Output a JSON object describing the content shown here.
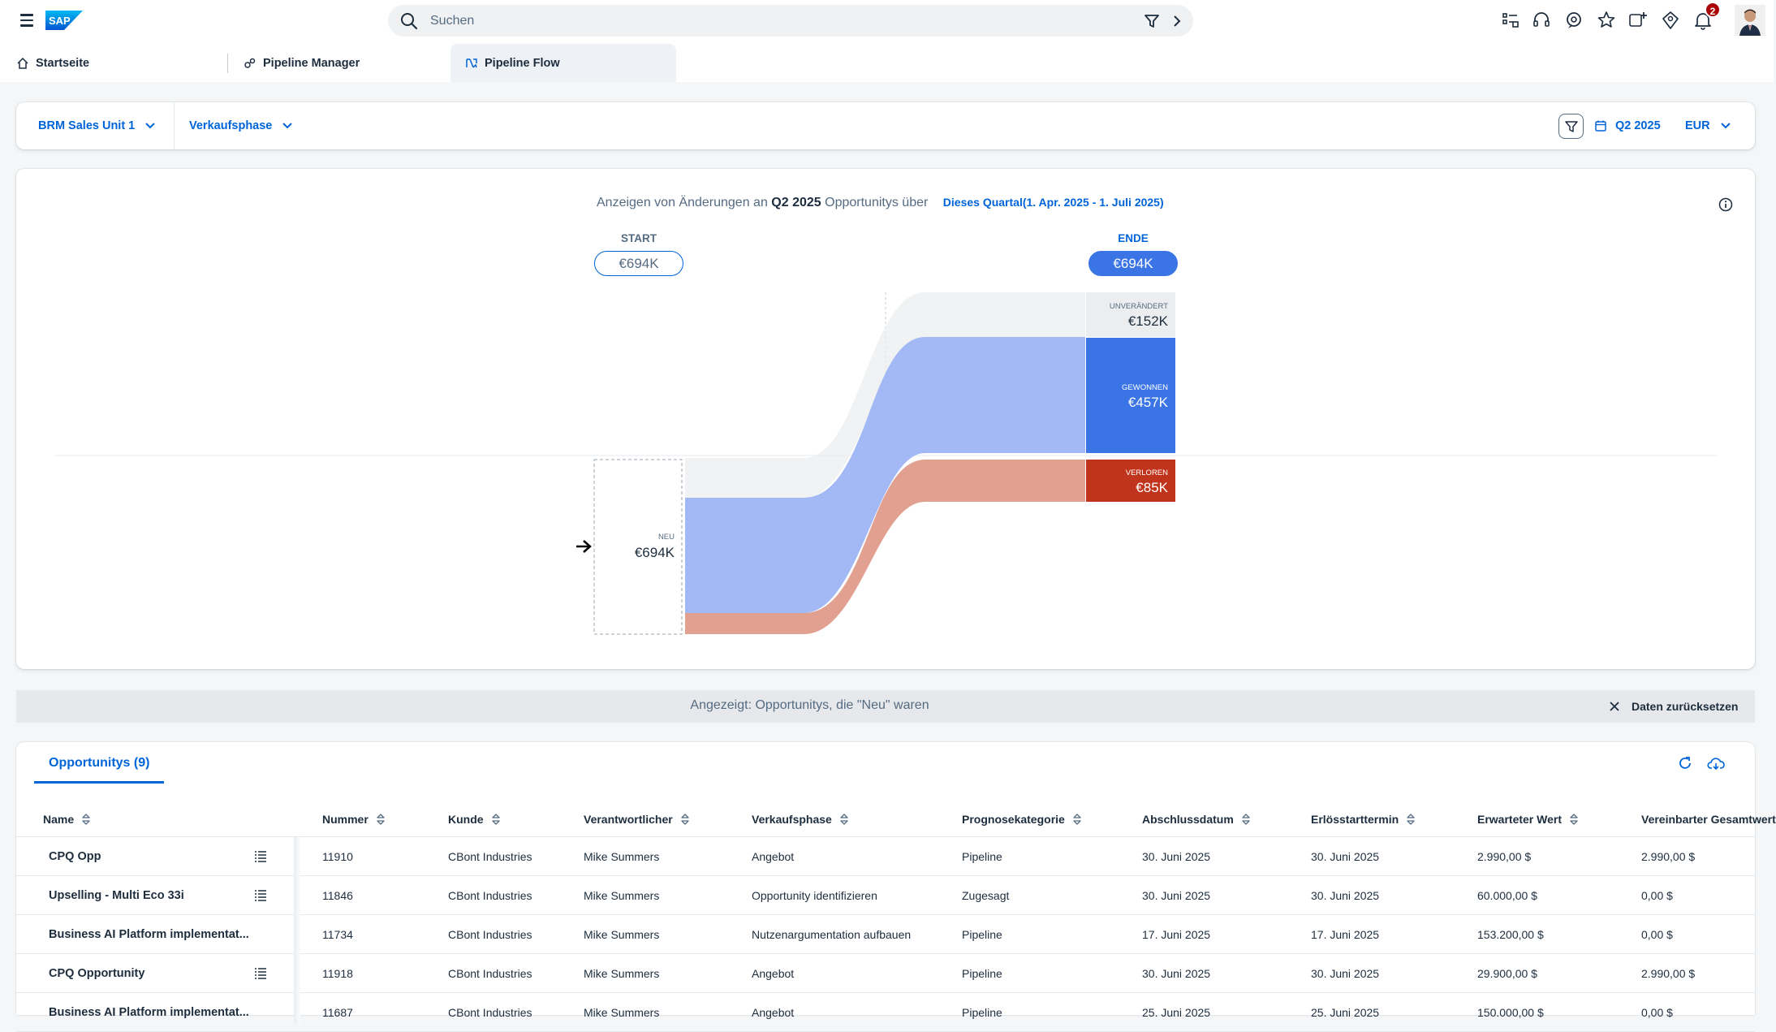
{
  "shell": {
    "logo_text": "SAP",
    "search_placeholder": "Suchen",
    "notification_count": "2"
  },
  "tabs": [
    {
      "label": "Startseite",
      "icon": "home-icon"
    },
    {
      "label": "Pipeline Manager",
      "icon": "pipeline-manager-icon"
    },
    {
      "label": "Pipeline Flow",
      "icon": "pipeline-flow-icon",
      "active": true
    }
  ],
  "filters": {
    "sales_unit": "BRM Sales Unit 1",
    "phase": "Verkaufsphase",
    "quarter": "Q2 2025",
    "currency": "EUR"
  },
  "chart": {
    "subtitle_prefix": "Anzeigen von Änderungen an",
    "subtitle_quarter": "Q2 2025",
    "subtitle_suffix": "Opportunitys über",
    "period_link": "Dieses Quartal(1. Apr. 2025 - 1. Juli 2025)",
    "start_label": "START",
    "start_value": "€694K",
    "end_label": "ENDE",
    "end_value": "€694K",
    "new_label": "NEU",
    "new_value": "€694K",
    "unchanged_label": "UNVERÄNDERT",
    "unchanged_value": "€152K",
    "won_label": "GEWONNEN",
    "won_value": "€457K",
    "lost_label": "VERLOREN",
    "lost_value": "€85K",
    "colors": {
      "unchanged": "#ebedef",
      "won": "#3b74e5",
      "won_flow": "#a2b9f5",
      "lost": "#c0341d",
      "lost_flow": "#e2a091"
    }
  },
  "chart_data": {
    "type": "sankey",
    "start": 694,
    "end": 694,
    "unit": "€K",
    "nodes": [
      "NEU",
      "UNVERÄNDERT",
      "GEWONNEN",
      "VERLOREN"
    ],
    "links": [
      {
        "source": "NEU",
        "target": "UNVERÄNDERT",
        "value": 152
      },
      {
        "source": "NEU",
        "target": "GEWONNEN",
        "value": 457
      },
      {
        "source": "NEU",
        "target": "VERLOREN",
        "value": 85
      }
    ]
  },
  "strip": {
    "message": "Angezeigt: Opportunitys, die \"Neu\" waren",
    "reset_label": "Daten zurücksetzen"
  },
  "table": {
    "tab_label": "Opportunitys (9)",
    "columns": [
      "Name",
      "Nummer",
      "Kunde",
      "Verantwortlicher",
      "Verkaufsphase",
      "Prognosekategorie",
      "Abschlussdatum",
      "Erlösstarttermin",
      "Erwarteter Wert",
      "Vereinbarter Gesamtwert"
    ],
    "rows": [
      {
        "name": "CPQ Opp",
        "list": true,
        "nummer": "11910",
        "kunde": "CBont Industries",
        "verantwortlicher": "Mike Summers",
        "phase": "Angebot",
        "prognose": "Pipeline",
        "abschluss": "30. Juni 2025",
        "erloes": "30. Juni 2025",
        "erwartet": "2.990,00 $",
        "vereinbart": "2.990,00 $"
      },
      {
        "name": "Upselling - Multi Eco 33i",
        "list": true,
        "nummer": "11846",
        "kunde": "CBont Industries",
        "verantwortlicher": "Mike Summers",
        "phase": "Opportunity identifizieren",
        "prognose": "Zugesagt",
        "abschluss": "30. Juni 2025",
        "erloes": "30. Juni 2025",
        "erwartet": "60.000,00 $",
        "vereinbart": "0,00 $"
      },
      {
        "name": "Business AI Platform implementat...",
        "list": false,
        "nummer": "11734",
        "kunde": "CBont Industries",
        "verantwortlicher": "Mike Summers",
        "phase": "Nutzenargumentation aufbauen",
        "prognose": "Pipeline",
        "abschluss": "17. Juni 2025",
        "erloes": "17. Juni 2025",
        "erwartet": "153.200,00 $",
        "vereinbart": "0,00 $"
      },
      {
        "name": "CPQ Opportunity",
        "list": true,
        "nummer": "11918",
        "kunde": "CBont Industries",
        "verantwortlicher": "Mike Summers",
        "phase": "Angebot",
        "prognose": "Pipeline",
        "abschluss": "30. Juni 2025",
        "erloes": "30. Juni 2025",
        "erwartet": "29.900,00 $",
        "vereinbart": "2.990,00 $"
      },
      {
        "name": "Business AI Platform implementat...",
        "list": false,
        "nummer": "11687",
        "kunde": "CBont Industries",
        "verantwortlicher": "Mike Summers",
        "phase": "Angebot",
        "prognose": "Pipeline",
        "abschluss": "25. Juni 2025",
        "erloes": "25. Juni 2025",
        "erwartet": "150.000,00 $",
        "vereinbart": "0,00 $"
      }
    ]
  }
}
